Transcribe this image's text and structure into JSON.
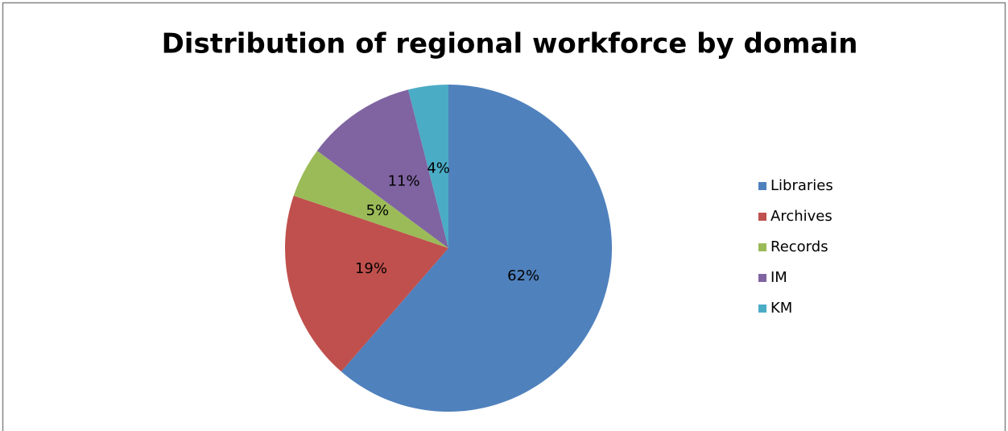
{
  "chart_data": {
    "type": "pie",
    "title": "Distribution of regional workforce by domain",
    "categories": [
      "Libraries",
      "Archives",
      "Records",
      "IM",
      "KM"
    ],
    "values": [
      62,
      19,
      5,
      11,
      4
    ],
    "value_labels": [
      "62%",
      "19%",
      "5%",
      "11%",
      "4%"
    ],
    "colors": [
      "#4f81bd",
      "#c0504d",
      "#9bbb59",
      "#8064a2",
      "#4bacc6"
    ],
    "legend": "right"
  }
}
